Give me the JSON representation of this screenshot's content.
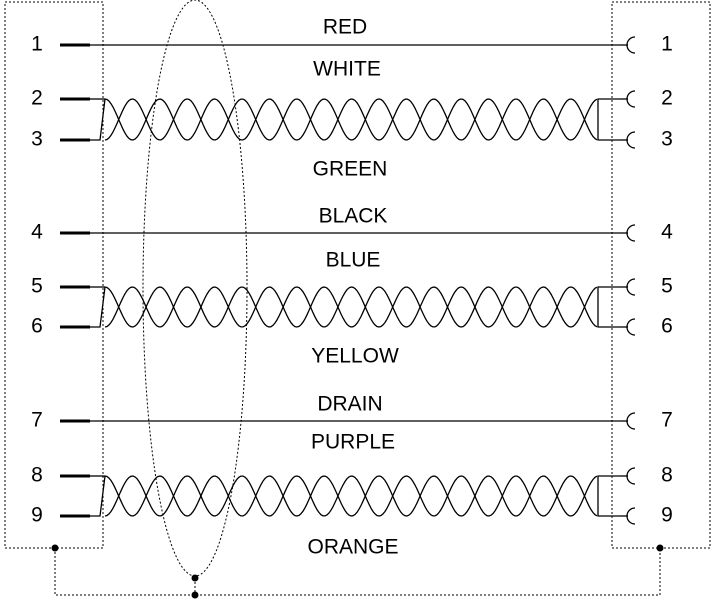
{
  "left_pins": [
    "1",
    "2",
    "3",
    "4",
    "5",
    "6",
    "7",
    "8",
    "9"
  ],
  "right_pins": [
    "1",
    "2",
    "3",
    "4",
    "5",
    "6",
    "7",
    "8",
    "9"
  ],
  "wire_labels": [
    "RED",
    "WHITE",
    "GREEN",
    "BLACK",
    "BLUE",
    "YELLOW",
    "DRAIN",
    "PURPLE",
    "ORANGE"
  ]
}
